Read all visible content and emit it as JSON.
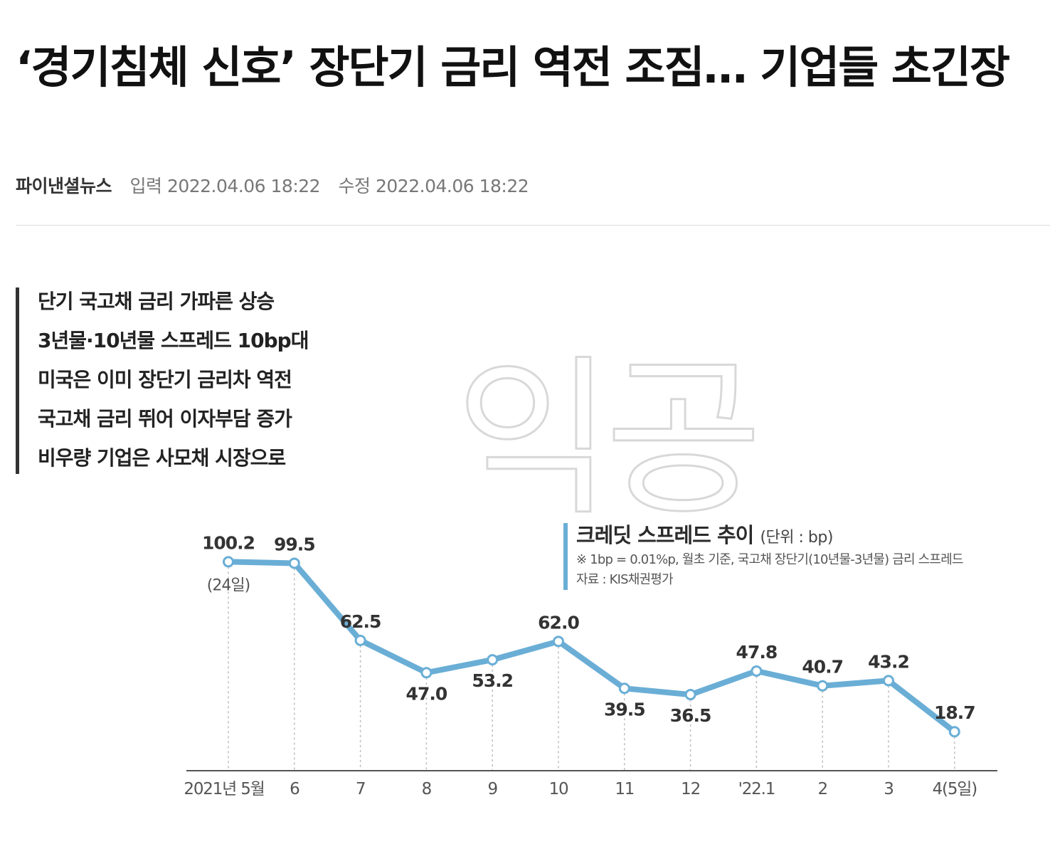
{
  "article": {
    "headline": "‘경기침체 신호’ 장단기 금리 역전 조짐… 기업들 초긴장",
    "source": "파이낸셜뉴스",
    "input_label": "입력",
    "input_time": "2022.04.06 18:22",
    "modified_label": "수정",
    "modified_time": "2022.04.06 18:22"
  },
  "summary": [
    "단기 국고채 금리 가파른 상승",
    "3년물·10년물 스프레드 10bp대",
    "미국은 이미 장단기 금리차 역전",
    "국고채 금리 뛰어 이자부담 증가",
    "비우량 기업은 사모채 시장으로"
  ],
  "graphic_text": {
    "watermark": "익공",
    "legend_title": "크레딧 스프레드 추이",
    "legend_unit": "(단위 : bp)",
    "legend_note": "※ 1bp = 0.01%p, 월초 기준, 국고채 장단기(10년물-3년물) 금리 스프레드",
    "legend_source": "자료 : KIS채권평가"
  },
  "chart_data": {
    "type": "line",
    "title": "크레딧 스프레드 추이",
    "unit": "bp",
    "categories": [
      "2021년 5월",
      "6",
      "7",
      "8",
      "9",
      "10",
      "11",
      "12",
      "'22.1",
      "2",
      "3",
      "4(5일)"
    ],
    "value_labels": [
      "100.2",
      "99.5",
      "62.5",
      "47.0",
      "53.2",
      "62.0",
      "39.5",
      "36.5",
      "47.8",
      "40.7",
      "43.2",
      "18.7"
    ],
    "values": [
      100.2,
      99.5,
      62.5,
      47.0,
      53.2,
      62.0,
      39.5,
      36.5,
      47.8,
      40.7,
      43.2,
      18.7
    ],
    "point_notes": [
      "(24일)",
      "",
      "",
      "",
      "",
      "",
      "",
      "",
      "",
      "",
      "",
      ""
    ],
    "label_positions": [
      "above",
      "above",
      "above",
      "below",
      "below",
      "above",
      "below",
      "below",
      "above",
      "above",
      "above",
      "above"
    ],
    "line_color": "#6aaed6",
    "ylim": [
      0,
      110
    ],
    "grid": false,
    "xlabel": "",
    "ylabel": ""
  }
}
